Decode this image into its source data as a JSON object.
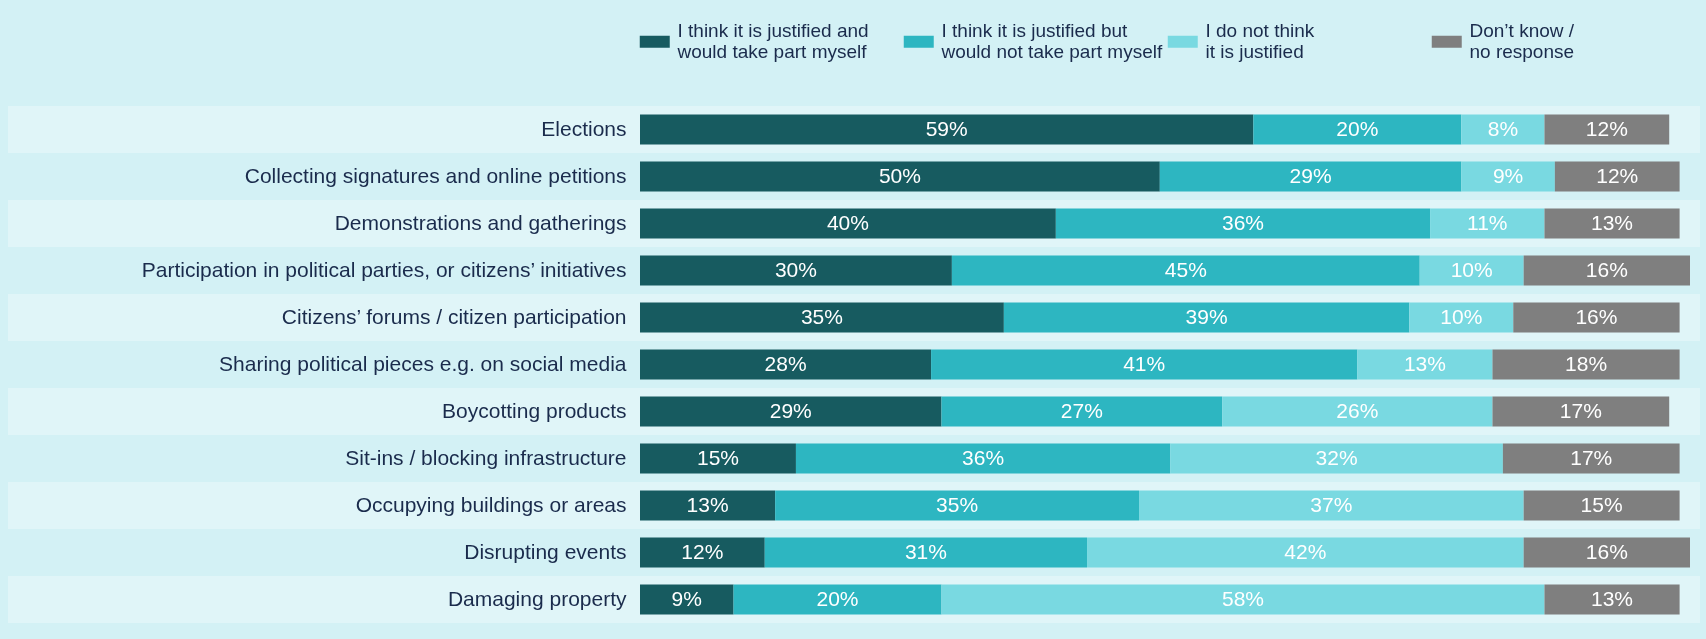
{
  "chart_data": {
    "type": "bar",
    "orientation": "horizontal",
    "stacked": true,
    "legend": "top",
    "tick_labels": "y",
    "categories": [
      "Elections",
      "Collecting signatures and online petitions",
      "Demonstrations and gatherings",
      "Participation in political parties, or citizens’ initiatives",
      "Citizens’ forums / citizen participation",
      "Sharing political pieces e.g. on social media",
      "Boycotting products",
      "Sit-ins / blocking infrastructure",
      "Occupying buildings or areas",
      "Disrupting events",
      "Damaging property"
    ],
    "series": [
      {
        "name": "I think it is justified and\nwould take part myself",
        "color": "#175b60",
        "values": [
          59,
          50,
          40,
          30,
          35,
          28,
          29,
          15,
          13,
          12,
          9
        ],
        "value_labels": [
          "59%",
          "50%",
          "40%",
          "30%",
          "35%",
          "28%",
          "29%",
          "15%",
          "13%",
          "12%",
          "9%"
        ]
      },
      {
        "name": "I think it is justified but\nwould not take part myself",
        "color": "#2db6c1",
        "values": [
          20,
          29,
          36,
          45,
          39,
          41,
          27,
          36,
          35,
          31,
          20
        ],
        "value_labels": [
          "20%",
          "29%",
          "36%",
          "45%",
          "39%",
          "41%",
          "27%",
          "36%",
          "35%",
          "31%",
          "20%"
        ]
      },
      {
        "name": "I do not think\nit is justified",
        "color": "#79d9e1",
        "values": [
          8,
          9,
          11,
          10,
          10,
          13,
          26,
          32,
          37,
          42,
          58
        ],
        "value_labels": [
          "8%",
          "9%",
          "11%",
          "10%",
          "10%",
          "13%",
          "26%",
          "32%",
          "37%",
          "42%",
          "58%"
        ]
      },
      {
        "name": "Don’t know /\nno response",
        "color": "#7f7f7f",
        "values": [
          12,
          12,
          13,
          16,
          16,
          18,
          17,
          17,
          15,
          16,
          13
        ],
        "value_labels": [
          "12%",
          "12%",
          "13%",
          "16%",
          "16%",
          "18%",
          "17%",
          "17%",
          "15%",
          "16%",
          "13%"
        ]
      }
    ]
  }
}
